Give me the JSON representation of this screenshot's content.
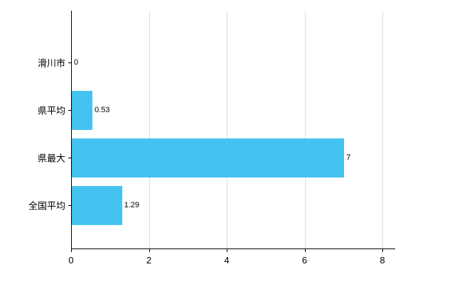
{
  "chart_data": {
    "type": "bar",
    "orientation": "horizontal",
    "categories": [
      "滑川市",
      "県平均",
      "県最大",
      "全国平均"
    ],
    "values": [
      0,
      0.53,
      7,
      1.29
    ],
    "value_labels": [
      "0",
      "0.53",
      "7",
      "1.29"
    ],
    "title": "",
    "xlabel": "",
    "ylabel": "",
    "xlim": [
      0,
      8
    ],
    "xticks": [
      0,
      2,
      4,
      6,
      8
    ],
    "xtick_labels": [
      "0",
      "2",
      "4",
      "6",
      "8"
    ],
    "grid": true,
    "bar_color": "#45C3F0",
    "axis_color": "#000000",
    "gridline_color": "#dcdcdc",
    "background_color": "#ffffff"
  }
}
